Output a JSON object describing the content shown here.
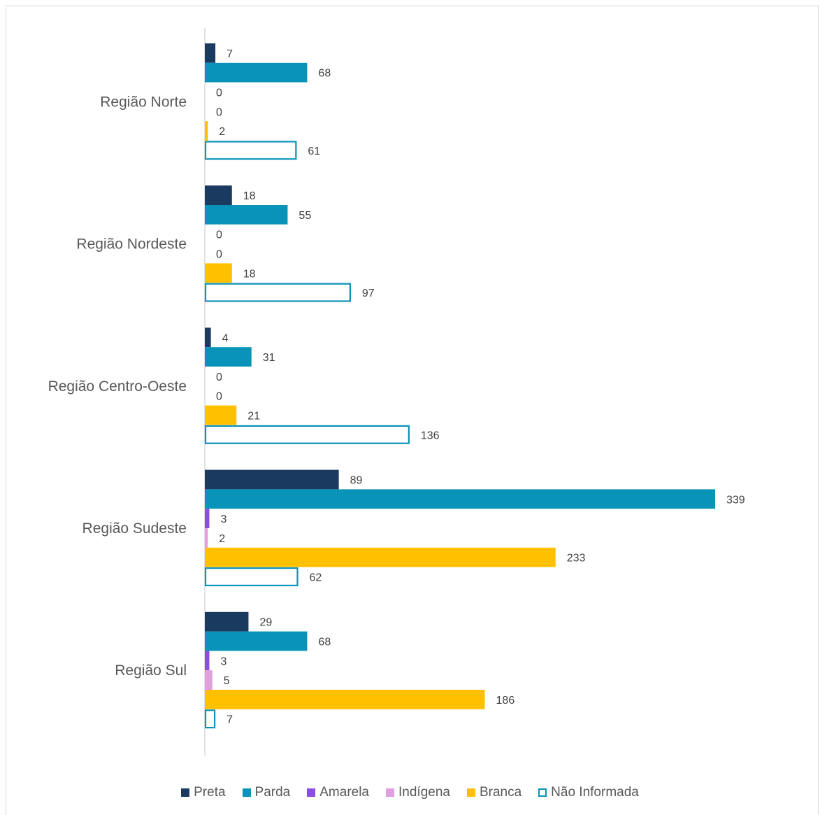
{
  "chart_data": {
    "type": "bar",
    "orientation": "horizontal",
    "categories": [
      "Região Norte",
      "Região Nordeste",
      "Região Centro-Oeste",
      "Região Sudeste",
      "Região Sul"
    ],
    "series": [
      {
        "name": "Preta",
        "color": "#1a3a5f",
        "values": [
          7,
          18,
          4,
          89,
          29
        ]
      },
      {
        "name": "Parda",
        "color": "#0a93b8",
        "values": [
          68,
          55,
          31,
          339,
          68
        ]
      },
      {
        "name": "Amarela",
        "color": "#8b4ce8",
        "values": [
          0,
          0,
          0,
          3,
          3
        ]
      },
      {
        "name": "Indígena",
        "color": "#e29fdf",
        "values": [
          0,
          0,
          0,
          2,
          5
        ]
      },
      {
        "name": "Branca",
        "color": "#ffc000",
        "values": [
          2,
          18,
          21,
          233,
          186
        ]
      },
      {
        "name": "Não Informada",
        "color": "#0a93b8",
        "outline": true,
        "values": [
          61,
          97,
          136,
          62,
          7
        ]
      }
    ],
    "xlim": [
      0,
      339
    ],
    "data_labels": true,
    "grid": false,
    "legend": "bottom"
  }
}
